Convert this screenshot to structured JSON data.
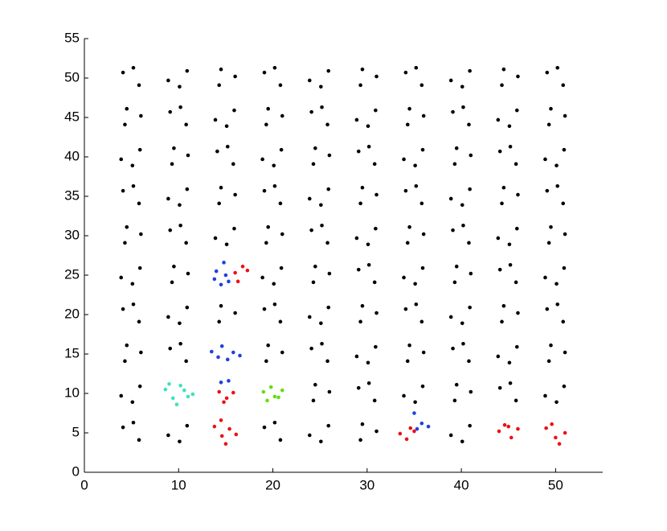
{
  "chart_data": {
    "type": "scatter",
    "xlim": [
      0,
      55
    ],
    "ylim": [
      0,
      55
    ],
    "xticks": [
      0,
      10,
      20,
      30,
      40,
      50
    ],
    "yticks": [
      0,
      5,
      10,
      15,
      20,
      25,
      30,
      35,
      40,
      45,
      50,
      55
    ],
    "series": [
      {
        "color": "#000000",
        "x": [
          4.1,
          5.8,
          5.2,
          5.9,
          3.9,
          5.1,
          4.5,
          6.0,
          4.3,
          4.1,
          5.8,
          5.2,
          5.9,
          3.9,
          5.1,
          4.5,
          6.0,
          4.3,
          4.1,
          5.8,
          5.2,
          5.9,
          3.9,
          5.1,
          4.5,
          6.0,
          4.3,
          4.1,
          5.8,
          5.2,
          10.9,
          8.9,
          10.1,
          9.1,
          10.8,
          10.2,
          10.9,
          8.9,
          10.1,
          9.5,
          11.0,
          9.3,
          9.1,
          10.8,
          10.2,
          10.9,
          8.9,
          10.1,
          9.5,
          11.0,
          9.3,
          9.1,
          10.8,
          10.2,
          10.9,
          8.9,
          10.1,
          14.5,
          16.0,
          14.3,
          15.9,
          13.9,
          15.1,
          14.5,
          16.0,
          14.3,
          14.1,
          15.8,
          15.2,
          15.9,
          13.9,
          15.1,
          14.5,
          16.0,
          14.3,
          19.1,
          20.8,
          20.2,
          19.5,
          21.0,
          19.3,
          19.1,
          20.8,
          20.2,
          20.9,
          18.9,
          20.1,
          19.5,
          21.0,
          19.3,
          19.1,
          20.8,
          20.2,
          20.9,
          18.9,
          20.1,
          19.5,
          21.0,
          19.3,
          19.1,
          20.8,
          20.2,
          25.9,
          23.9,
          25.1,
          24.5,
          26.0,
          24.3,
          24.1,
          25.8,
          25.2,
          25.9,
          23.9,
          25.1,
          24.5,
          26.0,
          24.3,
          24.1,
          25.8,
          25.2,
          25.9,
          23.9,
          25.1,
          24.5,
          26.0,
          24.3,
          24.1,
          25.8,
          25.2,
          25.9,
          23.9,
          25.1,
          29.5,
          31.0,
          29.3,
          29.1,
          30.8,
          30.2,
          30.9,
          28.9,
          30.1,
          29.5,
          31.0,
          29.3,
          29.1,
          30.8,
          30.2,
          30.9,
          28.9,
          30.1,
          29.5,
          31.0,
          29.3,
          29.1,
          30.8,
          30.2,
          30.9,
          28.9,
          30.1,
          29.5,
          31.0,
          29.3,
          35.9,
          33.9,
          35.1,
          34.5,
          36.0,
          34.3,
          34.1,
          35.8,
          35.2,
          35.9,
          33.9,
          35.1,
          34.5,
          36.0,
          34.3,
          34.1,
          35.8,
          35.2,
          35.9,
          33.9,
          35.1,
          34.5,
          36.0,
          34.3,
          34.1,
          35.8,
          35.2,
          40.9,
          38.9,
          40.1,
          39.5,
          41.0,
          39.3,
          39.1,
          40.8,
          40.2,
          40.9,
          38.9,
          40.1,
          39.5,
          41.0,
          39.3,
          39.1,
          40.8,
          40.2,
          40.9,
          38.9,
          40.1,
          39.5,
          41.0,
          39.3,
          39.1,
          40.8,
          40.2,
          40.9,
          38.9,
          40.1,
          44.1,
          45.8,
          45.2,
          45.9,
          43.9,
          45.1,
          44.5,
          46.0,
          44.3,
          44.1,
          45.8,
          45.2,
          45.9,
          43.9,
          45.1,
          44.5,
          46.0,
          44.3,
          44.1,
          45.8,
          45.2,
          45.9,
          43.9,
          45.1,
          44.5,
          46.0,
          44.3,
          50.9,
          48.9,
          50.1,
          49.5,
          51.0,
          49.3,
          49.1,
          50.8,
          50.2,
          50.9,
          48.9,
          50.1,
          49.5,
          51.0,
          49.3,
          49.1,
          50.8,
          50.2,
          50.9,
          48.9,
          50.1,
          49.5,
          51.0,
          49.3,
          49.1,
          50.8,
          50.2
        ],
        "values": [
          5.7,
          4.1,
          6.3,
          10.9,
          9.7,
          8.9,
          16.1,
          15.2,
          14.1,
          20.7,
          19.1,
          21.3,
          25.9,
          24.7,
          23.9,
          31.1,
          30.2,
          29.1,
          35.7,
          34.1,
          36.3,
          40.9,
          39.7,
          38.9,
          46.1,
          45.2,
          44.1,
          50.7,
          49.1,
          51.3,
          5.9,
          4.7,
          3.9,
          15.7,
          14.1,
          16.3,
          20.9,
          19.7,
          18.9,
          26.1,
          25.2,
          24.1,
          30.7,
          29.1,
          31.3,
          35.9,
          34.7,
          33.9,
          41.1,
          40.2,
          39.1,
          45.7,
          44.1,
          46.3,
          50.9,
          49.7,
          48.9,
          21.1,
          20.2,
          19.1,
          30.9,
          29.7,
          28.9,
          36.1,
          35.2,
          34.1,
          40.7,
          39.1,
          41.3,
          45.9,
          44.7,
          43.9,
          51.1,
          50.2,
          49.1,
          5.7,
          4.1,
          6.3,
          16.1,
          15.2,
          14.1,
          20.7,
          19.1,
          21.3,
          25.9,
          24.7,
          23.9,
          31.1,
          30.2,
          29.1,
          35.7,
          34.1,
          36.3,
          40.9,
          39.7,
          38.9,
          46.1,
          45.2,
          44.1,
          50.7,
          49.1,
          51.3,
          5.9,
          4.7,
          3.9,
          11.1,
          10.2,
          9.1,
          15.7,
          14.1,
          16.3,
          20.9,
          19.7,
          18.9,
          26.1,
          25.2,
          24.1,
          30.7,
          29.1,
          31.3,
          35.9,
          34.7,
          33.9,
          41.1,
          40.2,
          39.1,
          45.7,
          44.1,
          46.3,
          50.9,
          49.7,
          48.9,
          6.1,
          5.2,
          4.1,
          10.7,
          9.1,
          11.3,
          15.9,
          14.7,
          13.9,
          21.1,
          20.2,
          19.1,
          25.7,
          24.1,
          26.3,
          30.9,
          29.7,
          28.9,
          36.1,
          35.2,
          34.1,
          40.7,
          39.1,
          41.3,
          45.9,
          44.7,
          43.9,
          51.1,
          50.2,
          49.1,
          10.9,
          9.7,
          8.9,
          16.1,
          15.2,
          14.1,
          20.7,
          19.1,
          21.3,
          25.9,
          24.7,
          23.9,
          31.1,
          30.2,
          29.1,
          35.7,
          34.1,
          36.3,
          40.9,
          39.7,
          38.9,
          46.1,
          45.2,
          44.1,
          50.7,
          49.1,
          51.3,
          5.9,
          4.7,
          3.9,
          11.1,
          10.2,
          9.1,
          15.7,
          14.1,
          16.3,
          20.9,
          19.7,
          18.9,
          26.1,
          25.2,
          24.1,
          30.7,
          29.1,
          31.3,
          35.9,
          34.7,
          33.9,
          41.1,
          40.2,
          39.1,
          45.7,
          44.1,
          46.3,
          50.9,
          49.7,
          48.9,
          10.7,
          9.1,
          11.3,
          15.9,
          14.7,
          13.9,
          21.1,
          20.2,
          19.1,
          25.7,
          24.1,
          26.3,
          30.9,
          29.7,
          28.9,
          36.1,
          35.2,
          34.1,
          40.7,
          39.1,
          41.3,
          45.9,
          44.7,
          43.9,
          51.1,
          50.2,
          49.1,
          10.9,
          9.7,
          8.9,
          16.1,
          15.2,
          14.1,
          20.7,
          19.1,
          21.3,
          25.9,
          24.7,
          23.9,
          31.1,
          30.2,
          29.1,
          35.7,
          34.1,
          36.3,
          40.9,
          39.7,
          38.9,
          46.1,
          45.2,
          44.1,
          50.7,
          49.1,
          51.3
        ]
      },
      {
        "color": "#2040e0",
        "x": [
          14.0,
          14.8,
          15.3,
          13.8,
          14.5,
          15.0,
          13.5,
          14.6,
          15.8,
          16.5,
          14.2,
          15.2,
          14.5,
          15.3,
          35.0,
          35.8,
          36.5,
          35.3
        ],
        "values": [
          25.5,
          26.6,
          24.2,
          24.5,
          23.8,
          25.0,
          15.3,
          16.0,
          15.2,
          14.8,
          14.6,
          14.3,
          11.4,
          11.6,
          7.5,
          6.2,
          5.8,
          5.5
        ]
      },
      {
        "color": "#ee1111",
        "x": [
          16.0,
          16.8,
          17.3,
          16.3,
          14.3,
          15.1,
          15.8,
          14.8,
          13.8,
          14.6,
          15.4,
          16.1,
          15.0,
          14.5,
          33.5,
          34.2,
          35.0,
          34.6,
          44.0,
          45.0,
          46.0,
          45.3,
          44.6,
          49.0,
          50.0,
          51.0,
          50.4,
          49.6
        ],
        "values": [
          25.3,
          26.1,
          25.6,
          24.2,
          10.2,
          9.4,
          10.1,
          8.9,
          5.8,
          4.6,
          5.5,
          4.8,
          3.6,
          6.6,
          4.9,
          4.2,
          5.2,
          5.6,
          5.2,
          5.8,
          5.5,
          4.4,
          6.0,
          5.6,
          4.4,
          5.0,
          3.6,
          6.1
        ]
      },
      {
        "color": "#40e0c0",
        "x": [
          8.6,
          9.4,
          10.2,
          11.0,
          9.8,
          10.6,
          9.0,
          11.5
        ],
        "values": [
          10.5,
          9.4,
          11.0,
          9.6,
          8.6,
          10.4,
          11.2,
          9.9
        ]
      },
      {
        "color": "#66dd11",
        "x": [
          19.0,
          19.8,
          20.6,
          21.0,
          19.4,
          20.2
        ],
        "values": [
          10.2,
          10.8,
          9.5,
          10.4,
          9.1,
          9.6
        ]
      }
    ]
  }
}
